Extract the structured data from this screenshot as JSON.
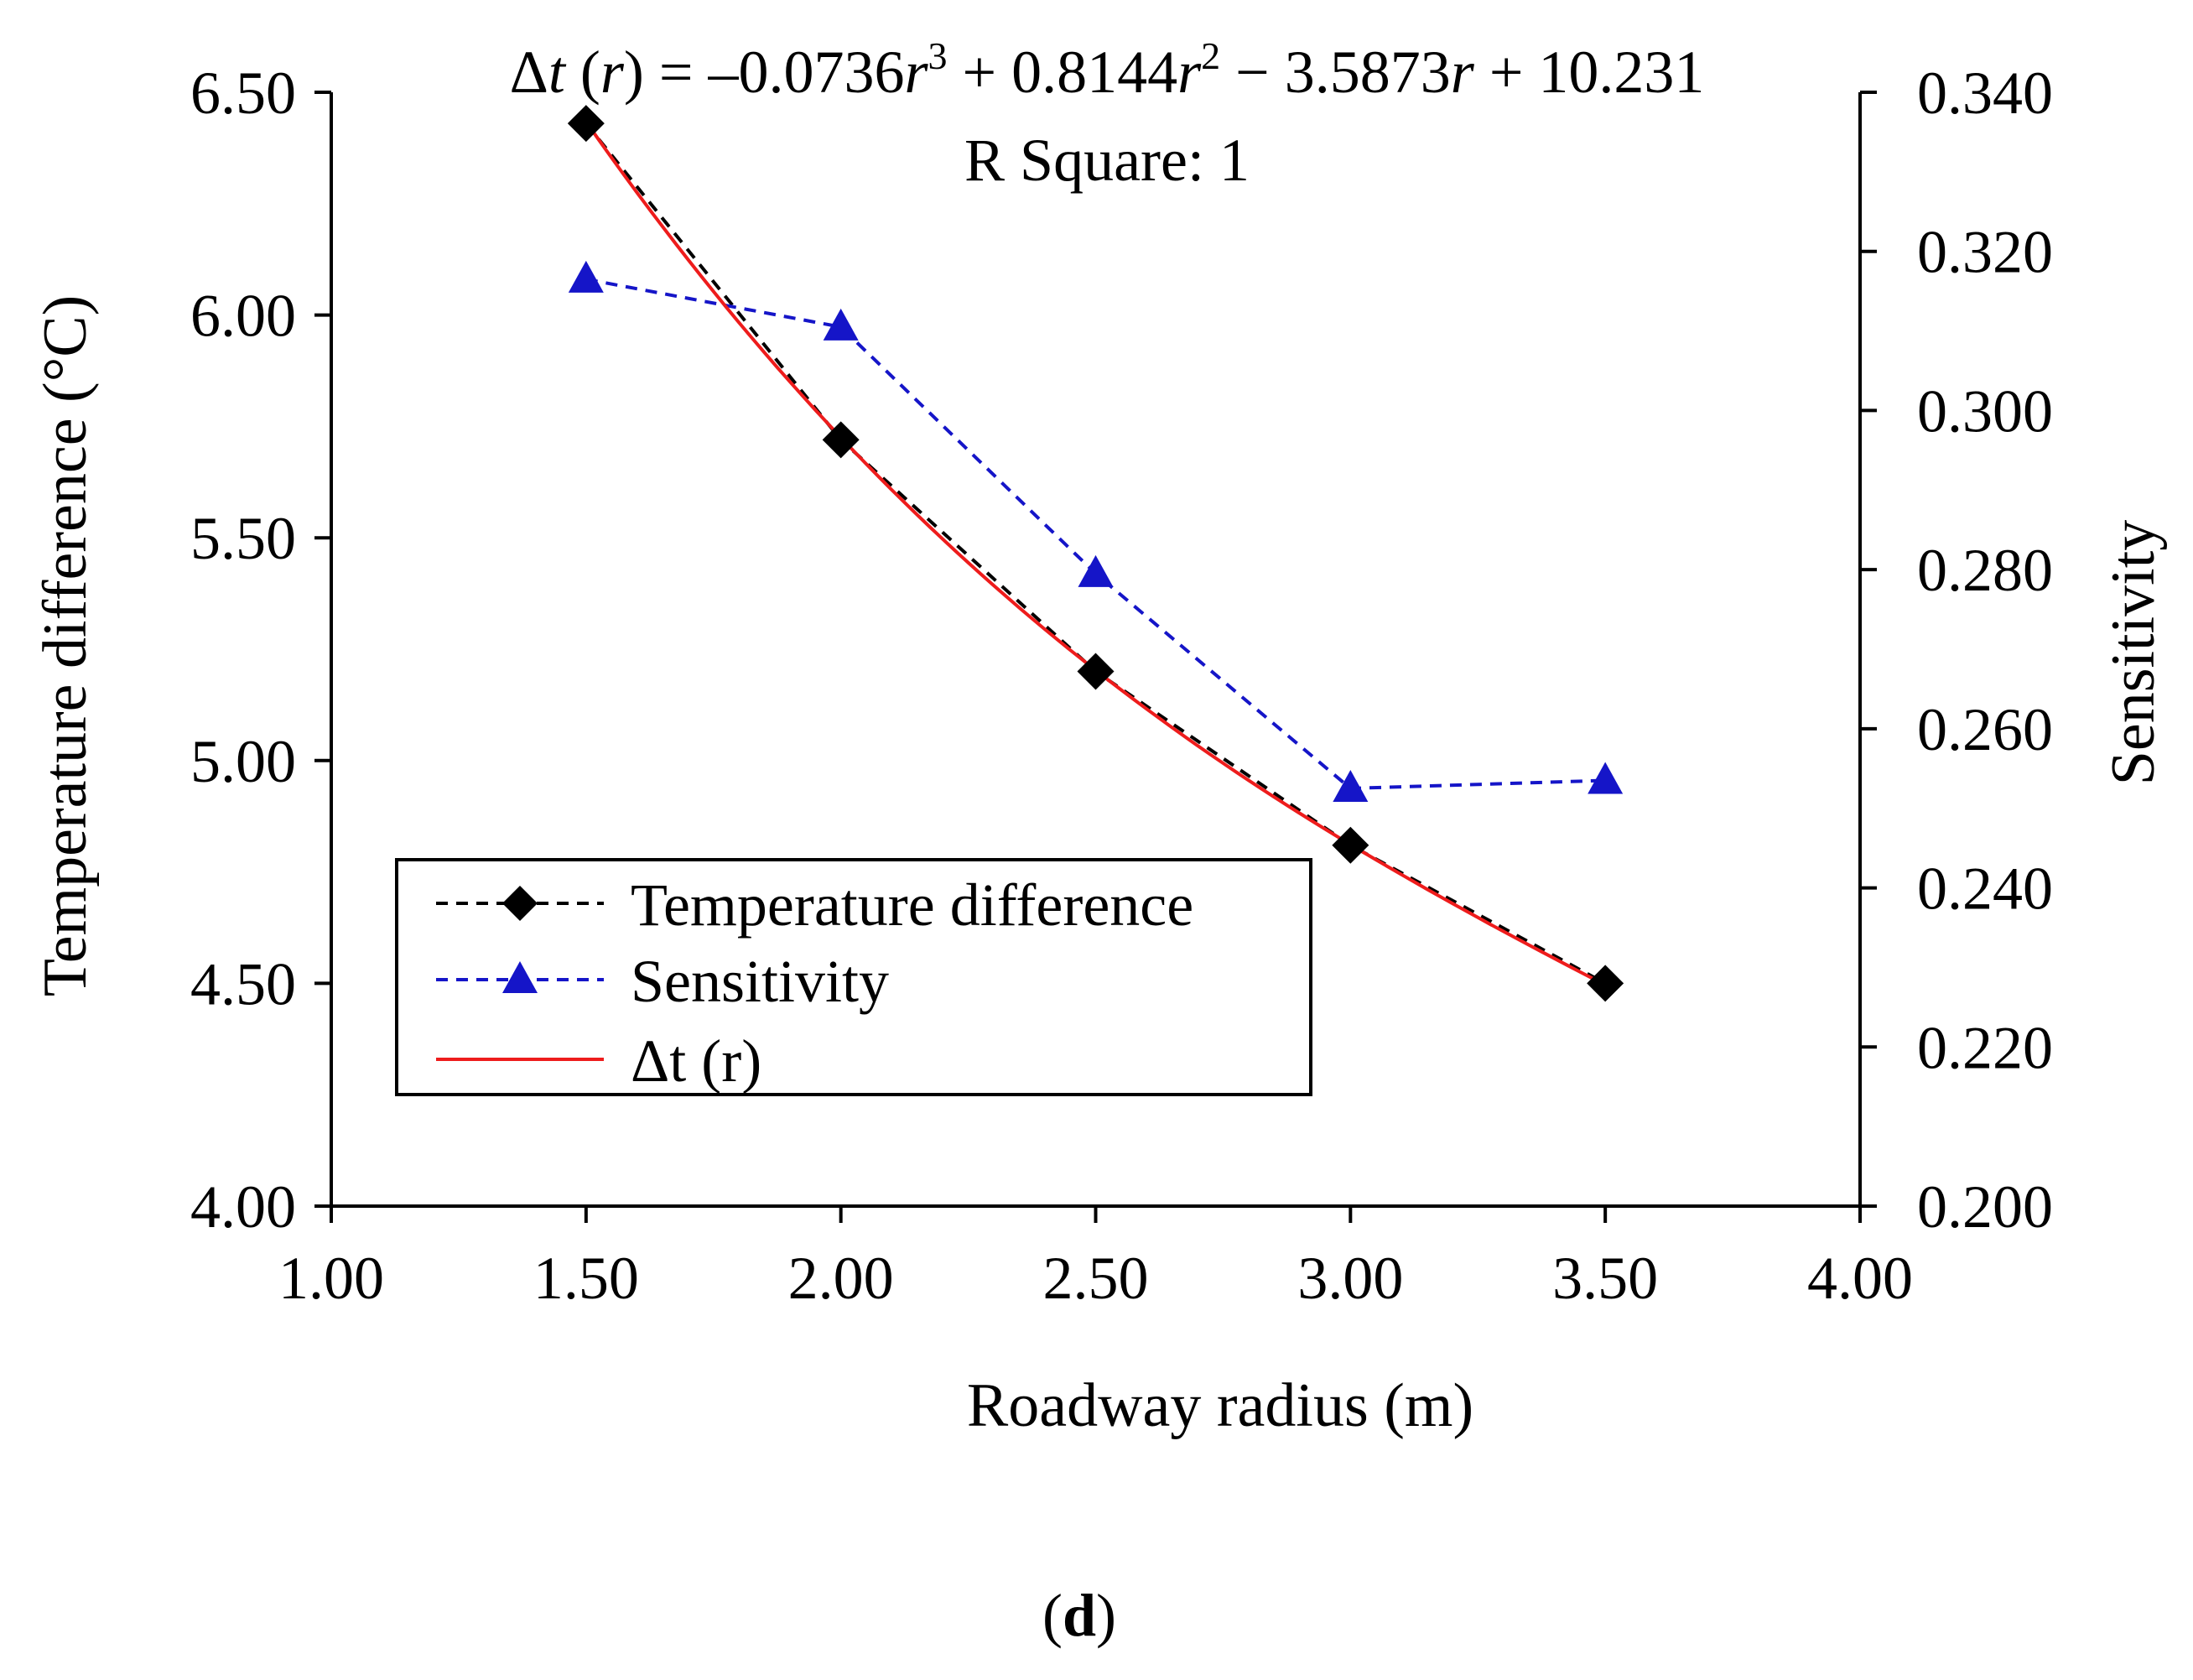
{
  "chart_data": {
    "type": "line",
    "equation": {
      "parts": [
        "Δ",
        "t",
        " (",
        "r",
        ") = –0.0736",
        "r",
        "3",
        " + 0.8144",
        "r",
        "2",
        " − 3.5873",
        "r",
        " + 10.231"
      ],
      "r_square": "R Square: 1"
    },
    "x": [
      1.5,
      2.0,
      2.5,
      3.0,
      3.5
    ],
    "xlabel": "Roadway radius (m)",
    "ylabel_left": "Temperature difference  (°C)",
    "ylabel_right": "Sensitivity",
    "xlim": [
      1.0,
      4.0
    ],
    "ylim_left": [
      4.0,
      6.5
    ],
    "ylim_right": [
      0.2,
      0.34
    ],
    "x_ticks": [
      "1.00",
      "1.50",
      "2.00",
      "2.50",
      "3.00",
      "3.50",
      "4.00"
    ],
    "y_left_ticks": [
      "4.00",
      "4.50",
      "5.00",
      "5.50",
      "6.00",
      "6.50"
    ],
    "y_right_ticks": [
      "0.200",
      "0.220",
      "0.240",
      "0.260",
      "0.280",
      "0.300",
      "0.320",
      "0.340"
    ],
    "series": [
      {
        "name": "Temperature difference",
        "axis": "left",
        "style": "dashed",
        "marker": "diamond",
        "color": "#000000",
        "values": [
          6.43,
          5.72,
          5.2,
          4.81,
          4.5
        ]
      },
      {
        "name": "Sensitivity",
        "axis": "right",
        "style": "dashed",
        "marker": "triangle",
        "color": "#1515c8",
        "values": [
          0.3165,
          0.3105,
          0.2795,
          0.2525,
          0.2535
        ]
      },
      {
        "name": "Δt (r)",
        "axis": "left",
        "style": "solid",
        "marker": "none",
        "color": "#ee1c1c",
        "coefficients": [
          -0.0736,
          0.8144,
          -3.5873,
          10.231
        ]
      }
    ],
    "legend": {
      "position": "lower-left",
      "entries": [
        "Temperature difference",
        "Sensitivity",
        "Δt (r)"
      ]
    },
    "grid": false
  },
  "caption": {
    "open": "(",
    "letter": "d",
    "close": ")"
  }
}
